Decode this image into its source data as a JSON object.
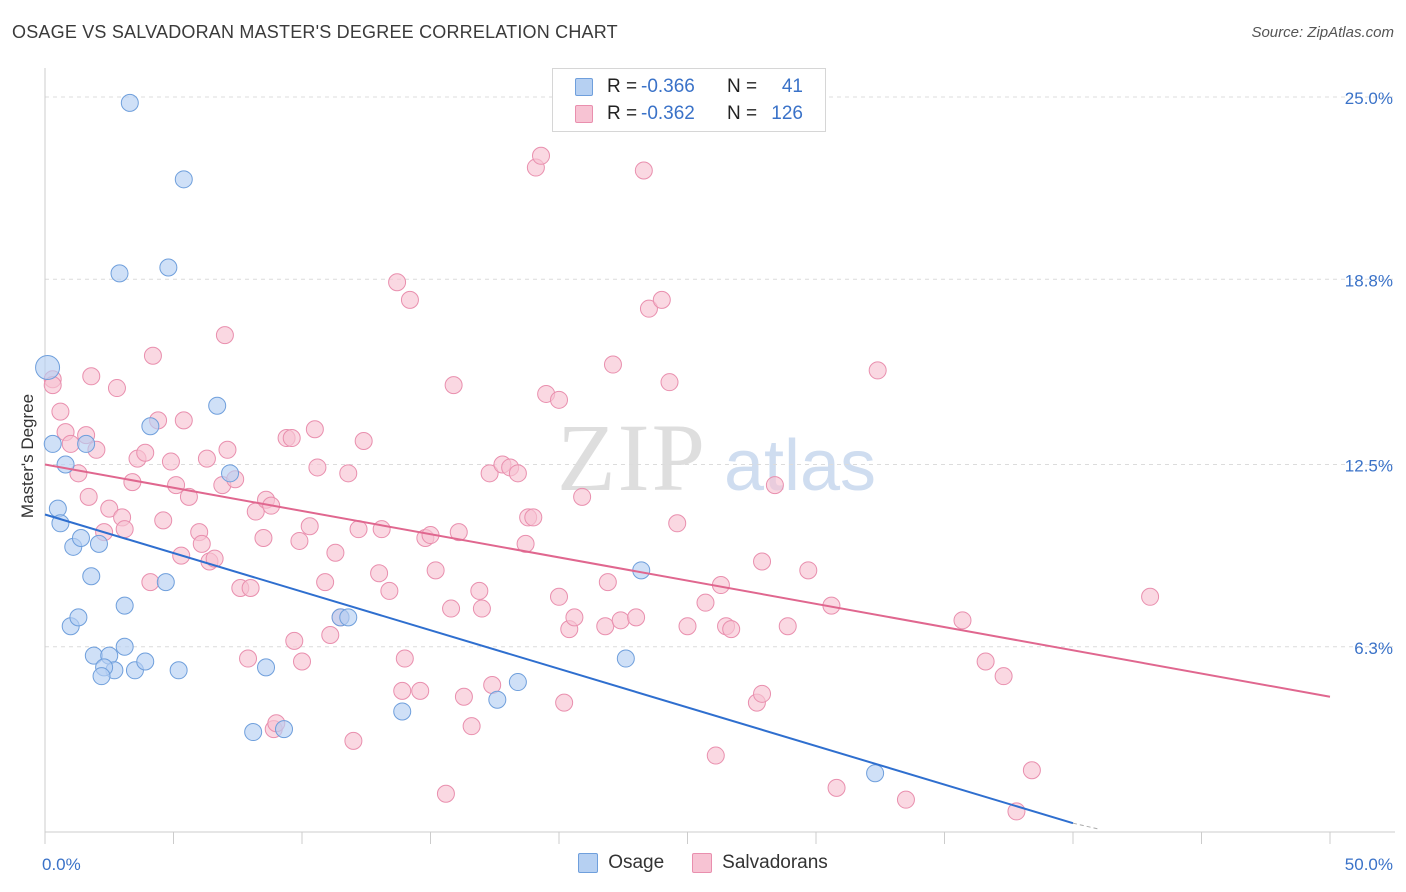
{
  "title": "OSAGE VS SALVADORAN MASTER'S DEGREE CORRELATION CHART",
  "source": "Source: ZipAtlas.com",
  "watermark": {
    "zip": "ZIP",
    "atlas": "atlas"
  },
  "colors": {
    "osage_fill": "#b6d0f2",
    "osage_stroke": "#6f9fdc",
    "osage_line": "#2f6fcf",
    "salv_fill": "#f7c3d3",
    "salv_stroke": "#e98fae",
    "salv_line": "#e0678f",
    "tick_label": "#3a72c8",
    "grid": "#dcdcdc"
  },
  "legend": {
    "rows": [
      {
        "label": "R =",
        "r": "-0.366",
        "n_label": "N =",
        "n": "41"
      },
      {
        "label": "R =",
        "r": "-0.362",
        "n_label": "N =",
        "n": "126"
      }
    ],
    "bottom": [
      "Osage",
      "Salvadorans"
    ]
  },
  "chart_data": {
    "type": "scatter",
    "ylabel": "Master's Degree",
    "xlabel": "",
    "xlim": [
      0,
      50
    ],
    "ylim": [
      0,
      25.8
    ],
    "x_tick_labels": [
      {
        "value": 0,
        "label": "0.0%"
      },
      {
        "value": 50,
        "label": "50.0%"
      }
    ],
    "y_tick_labels": [
      {
        "value": 6.3,
        "label": "6.3%"
      },
      {
        "value": 12.5,
        "label": "12.5%"
      },
      {
        "value": 18.8,
        "label": "18.8%"
      },
      {
        "value": 25.0,
        "label": "25.0%"
      }
    ],
    "x_minor_ticks": [
      0,
      5,
      10,
      15,
      20,
      25,
      30,
      35,
      40,
      45,
      50
    ],
    "grid": "horizontal dashed",
    "series": [
      {
        "name": "Osage",
        "R": -0.366,
        "N": 41,
        "trend": {
          "x": [
            0,
            40
          ],
          "y": [
            10.8,
            0.3
          ],
          "dash_to": [
            41,
            0.1
          ]
        },
        "points": [
          [
            3.3,
            24.8
          ],
          [
            5.4,
            22.2
          ],
          [
            2.9,
            19.0
          ],
          [
            4.8,
            19.2
          ],
          [
            0.1,
            15.8
          ],
          [
            0.3,
            13.2
          ],
          [
            0.5,
            11.0
          ],
          [
            0.6,
            10.5
          ],
          [
            0.8,
            12.5
          ],
          [
            1.6,
            13.2
          ],
          [
            4.1,
            13.8
          ],
          [
            6.7,
            14.5
          ],
          [
            7.2,
            12.2
          ],
          [
            1.1,
            9.7
          ],
          [
            1.4,
            10.0
          ],
          [
            2.1,
            9.8
          ],
          [
            1.8,
            8.7
          ],
          [
            4.7,
            8.5
          ],
          [
            1.0,
            7.0
          ],
          [
            1.3,
            7.3
          ],
          [
            3.1,
            7.7
          ],
          [
            3.1,
            6.3
          ],
          [
            1.9,
            6.0
          ],
          [
            2.5,
            6.0
          ],
          [
            2.7,
            5.5
          ],
          [
            2.3,
            5.6
          ],
          [
            2.2,
            5.3
          ],
          [
            3.5,
            5.5
          ],
          [
            3.9,
            5.8
          ],
          [
            5.2,
            5.5
          ],
          [
            8.6,
            5.6
          ],
          [
            11.5,
            7.3
          ],
          [
            11.8,
            7.3
          ],
          [
            8.1,
            3.4
          ],
          [
            9.3,
            3.5
          ],
          [
            13.9,
            4.1
          ],
          [
            17.6,
            4.5
          ],
          [
            18.4,
            5.1
          ],
          [
            22.6,
            5.9
          ],
          [
            23.2,
            8.9
          ],
          [
            32.3,
            2.0
          ]
        ],
        "point_sizes": {
          "0.1,15.8": "large"
        }
      },
      {
        "name": "Salvadorans",
        "R": -0.362,
        "N": 126,
        "trend": {
          "x": [
            0,
            50
          ],
          "y": [
            12.5,
            4.6
          ]
        },
        "points": [
          [
            0.3,
            15.4
          ],
          [
            0.6,
            14.3
          ],
          [
            0.8,
            13.6
          ],
          [
            1.0,
            13.2
          ],
          [
            1.3,
            12.2
          ],
          [
            1.6,
            13.5
          ],
          [
            1.7,
            11.4
          ],
          [
            2.0,
            13.0
          ],
          [
            1.8,
            15.5
          ],
          [
            2.3,
            10.2
          ],
          [
            2.5,
            11.0
          ],
          [
            2.8,
            15.1
          ],
          [
            3.0,
            10.7
          ],
          [
            3.1,
            10.3
          ],
          [
            3.4,
            11.9
          ],
          [
            3.6,
            12.7
          ],
          [
            3.9,
            12.9
          ],
          [
            4.1,
            8.5
          ],
          [
            4.2,
            16.2
          ],
          [
            4.4,
            14.0
          ],
          [
            4.6,
            10.6
          ],
          [
            4.9,
            12.6
          ],
          [
            5.1,
            11.8
          ],
          [
            5.3,
            9.4
          ],
          [
            5.4,
            14.0
          ],
          [
            5.6,
            11.4
          ],
          [
            6.0,
            10.2
          ],
          [
            6.1,
            9.8
          ],
          [
            6.3,
            12.7
          ],
          [
            6.4,
            9.2
          ],
          [
            6.6,
            9.3
          ],
          [
            6.9,
            11.8
          ],
          [
            7.0,
            16.9
          ],
          [
            7.1,
            13.0
          ],
          [
            7.4,
            12.0
          ],
          [
            7.6,
            8.3
          ],
          [
            7.9,
            5.9
          ],
          [
            8.0,
            8.3
          ],
          [
            8.2,
            10.9
          ],
          [
            8.5,
            10.0
          ],
          [
            8.6,
            11.3
          ],
          [
            8.8,
            11.1
          ],
          [
            8.9,
            3.5
          ],
          [
            9.0,
            3.7
          ],
          [
            9.4,
            13.4
          ],
          [
            9.6,
            13.4
          ],
          [
            9.7,
            6.5
          ],
          [
            9.9,
            9.9
          ],
          [
            10.0,
            5.8
          ],
          [
            10.3,
            10.4
          ],
          [
            10.5,
            13.7
          ],
          [
            10.6,
            12.4
          ],
          [
            10.9,
            8.5
          ],
          [
            11.1,
            6.7
          ],
          [
            11.3,
            9.5
          ],
          [
            11.5,
            7.3
          ],
          [
            11.8,
            12.2
          ],
          [
            12.0,
            3.1
          ],
          [
            12.2,
            10.3
          ],
          [
            12.4,
            13.3
          ],
          [
            13.0,
            8.8
          ],
          [
            13.1,
            10.3
          ],
          [
            13.4,
            8.2
          ],
          [
            13.7,
            18.7
          ],
          [
            13.9,
            4.8
          ],
          [
            14.0,
            5.9
          ],
          [
            14.2,
            18.1
          ],
          [
            14.6,
            4.8
          ],
          [
            14.8,
            10.0
          ],
          [
            15.0,
            10.1
          ],
          [
            15.2,
            8.9
          ],
          [
            15.6,
            1.3
          ],
          [
            15.8,
            7.6
          ],
          [
            15.9,
            15.2
          ],
          [
            16.1,
            10.2
          ],
          [
            16.3,
            4.6
          ],
          [
            16.6,
            3.6
          ],
          [
            16.9,
            8.2
          ],
          [
            17.0,
            7.6
          ],
          [
            17.3,
            12.2
          ],
          [
            17.4,
            5.0
          ],
          [
            17.8,
            12.5
          ],
          [
            18.1,
            12.4
          ],
          [
            18.4,
            12.2
          ],
          [
            18.7,
            9.8
          ],
          [
            18.8,
            10.7
          ],
          [
            19.0,
            10.7
          ],
          [
            19.1,
            22.6
          ],
          [
            19.3,
            23.0
          ],
          [
            19.5,
            14.9
          ],
          [
            20.0,
            14.7
          ],
          [
            20.0,
            8.0
          ],
          [
            20.2,
            4.4
          ],
          [
            20.4,
            6.9
          ],
          [
            20.6,
            7.3
          ],
          [
            20.9,
            11.4
          ],
          [
            21.8,
            7.0
          ],
          [
            21.9,
            8.5
          ],
          [
            22.1,
            15.9
          ],
          [
            22.4,
            7.2
          ],
          [
            23.0,
            7.3
          ],
          [
            23.3,
            22.5
          ],
          [
            23.5,
            17.8
          ],
          [
            24.0,
            18.1
          ],
          [
            24.3,
            15.3
          ],
          [
            24.6,
            10.5
          ],
          [
            25.0,
            7.0
          ],
          [
            25.7,
            7.8
          ],
          [
            26.1,
            2.6
          ],
          [
            26.3,
            8.4
          ],
          [
            26.5,
            7.0
          ],
          [
            26.7,
            6.9
          ],
          [
            27.7,
            4.4
          ],
          [
            27.9,
            4.7
          ],
          [
            27.9,
            9.2
          ],
          [
            28.4,
            11.8
          ],
          [
            28.9,
            7.0
          ],
          [
            29.7,
            8.9
          ],
          [
            30.6,
            7.7
          ],
          [
            30.8,
            1.5
          ],
          [
            32.4,
            15.7
          ],
          [
            33.5,
            1.1
          ],
          [
            35.7,
            7.2
          ],
          [
            36.6,
            5.8
          ],
          [
            37.3,
            5.3
          ],
          [
            37.8,
            0.7
          ],
          [
            38.4,
            2.1
          ],
          [
            43.0,
            8.0
          ],
          [
            0.3,
            15.2
          ]
        ]
      }
    ]
  }
}
